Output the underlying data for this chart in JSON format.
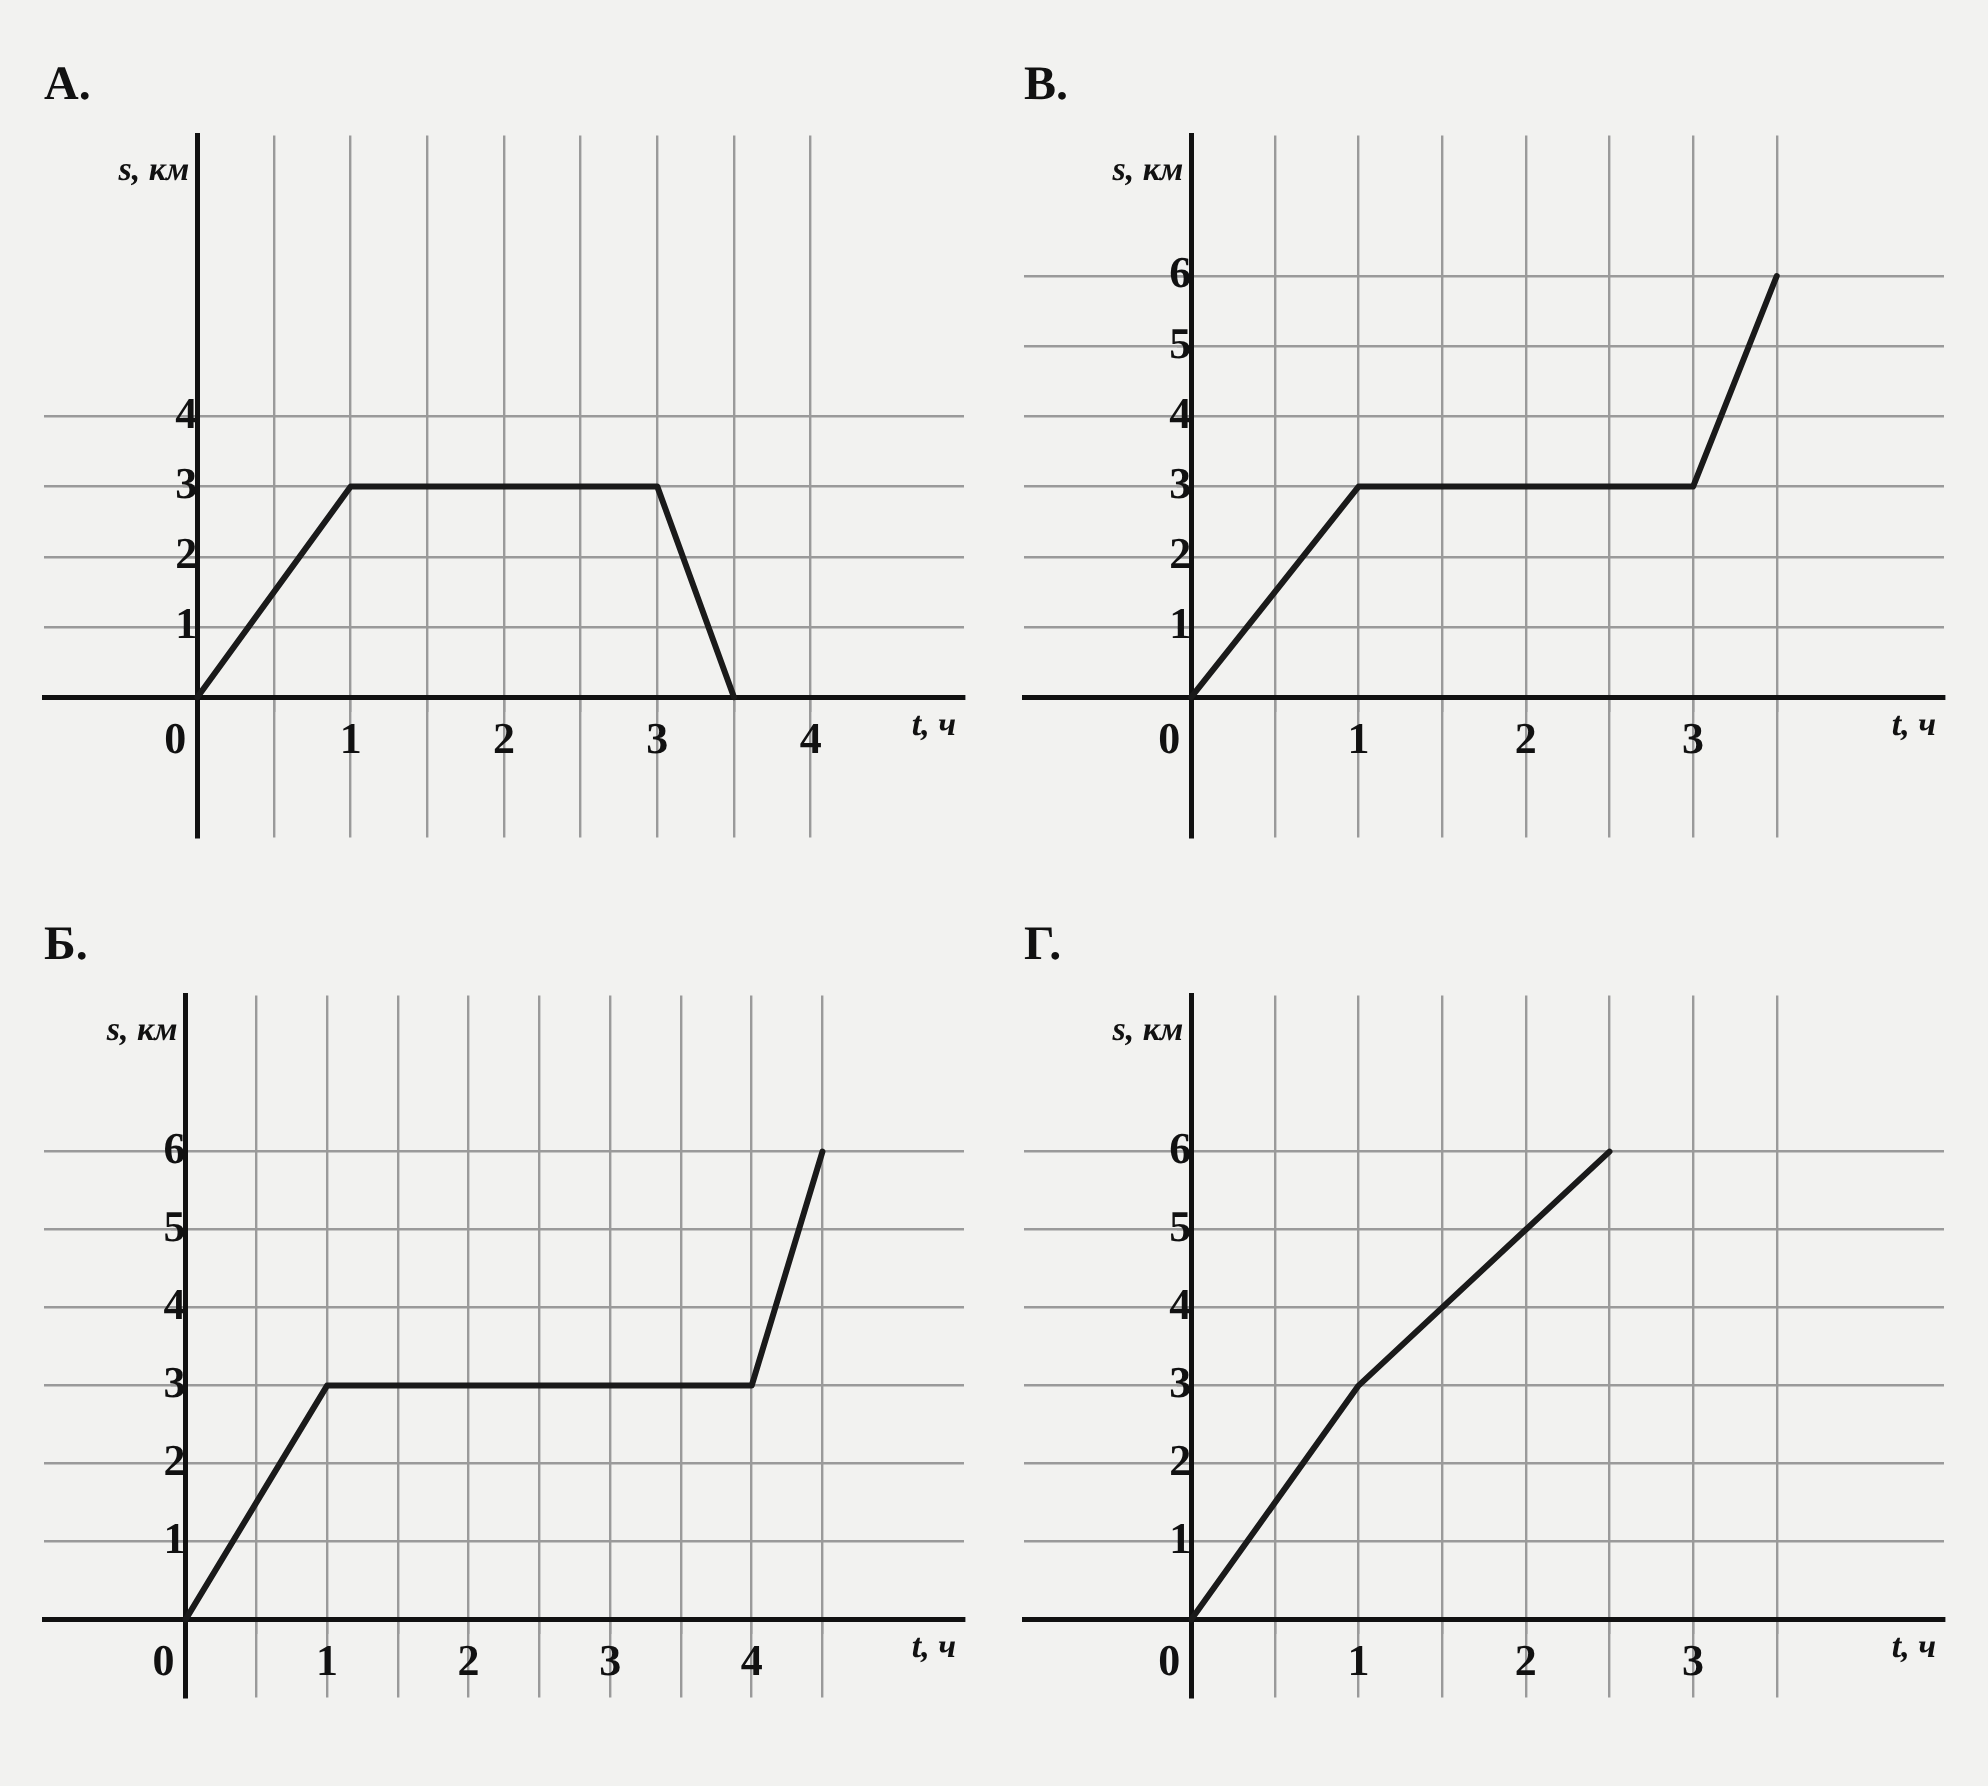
{
  "chart_data": [
    {
      "type": "line",
      "title": "А.",
      "xlabel": "t, ч",
      "ylabel": "s, км",
      "x": [
        0,
        1,
        3,
        3.5
      ],
      "series": [
        {
          "color": "#1a1a1a",
          "values": [
            0,
            3,
            3,
            0
          ]
        }
      ],
      "xlim": [
        -1,
        5
      ],
      "ylim": [
        -2,
        8
      ],
      "xticks": [
        0,
        {
          "value": 0.5,
          "label": null
        },
        1,
        {
          "value": 1.5,
          "label": null
        },
        2,
        {
          "value": 2.5,
          "label": null
        },
        3,
        {
          "value": 3.5,
          "label": null
        },
        4
      ],
      "yticks": [
        1,
        2,
        3,
        4
      ],
      "grid": true,
      "legend": false,
      "marker": "none",
      "line_style": "solid"
    },
    {
      "type": "line",
      "title": "В.",
      "xlabel": "t, ч",
      "ylabel": "s, км",
      "x": [
        0,
        1,
        3,
        3.5
      ],
      "series": [
        {
          "color": "#1a1a1a",
          "values": [
            0,
            3,
            3,
            6
          ]
        }
      ],
      "xlim": [
        -1,
        4.5
      ],
      "ylim": [
        -2,
        8
      ],
      "xticks": [
        0,
        {
          "value": 0.5,
          "label": null
        },
        1,
        {
          "value": 1.5,
          "label": null
        },
        2,
        {
          "value": 2.5,
          "label": null
        },
        3,
        {
          "value": 3.5,
          "label": null
        }
      ],
      "yticks": [
        1,
        2,
        3,
        4,
        5,
        6
      ],
      "grid": true,
      "legend": false,
      "marker": "none",
      "line_style": "solid"
    },
    {
      "type": "line",
      "title": "Б.",
      "xlabel": "t, ч",
      "ylabel": "s, км",
      "x": [
        0,
        1,
        4,
        4.5
      ],
      "series": [
        {
          "color": "#1a1a1a",
          "values": [
            0,
            3,
            3,
            6
          ]
        }
      ],
      "xlim": [
        -1,
        5.5
      ],
      "ylim": [
        -1,
        8
      ],
      "xticks": [
        0,
        {
          "value": 0.5,
          "label": null
        },
        1,
        {
          "value": 1.5,
          "label": null
        },
        2,
        {
          "value": 2.5,
          "label": null
        },
        3,
        {
          "value": 3.5,
          "label": null
        },
        4,
        {
          "value": 4.5,
          "label": null
        }
      ],
      "yticks": [
        1,
        2,
        3,
        4,
        5,
        6
      ],
      "grid": true,
      "legend": false,
      "marker": "none",
      "line_style": "solid"
    },
    {
      "type": "line",
      "title": "Г.",
      "xlabel": "t, ч",
      "ylabel": "s, км",
      "x": [
        0,
        1,
        2.5
      ],
      "series": [
        {
          "color": "#1a1a1a",
          "values": [
            0,
            3,
            6
          ]
        }
      ],
      "xlim": [
        -1,
        4.5
      ],
      "ylim": [
        -1,
        8
      ],
      "xticks": [
        0,
        {
          "value": 0.5,
          "label": null
        },
        1,
        {
          "value": 1.5,
          "label": null
        },
        2,
        {
          "value": 2.5,
          "label": null
        },
        3,
        {
          "value": 3.5,
          "label": null
        }
      ],
      "yticks": [
        1,
        2,
        3,
        4,
        5,
        6
      ],
      "grid": true,
      "legend": false,
      "marker": "none",
      "line_style": "solid"
    }
  ]
}
